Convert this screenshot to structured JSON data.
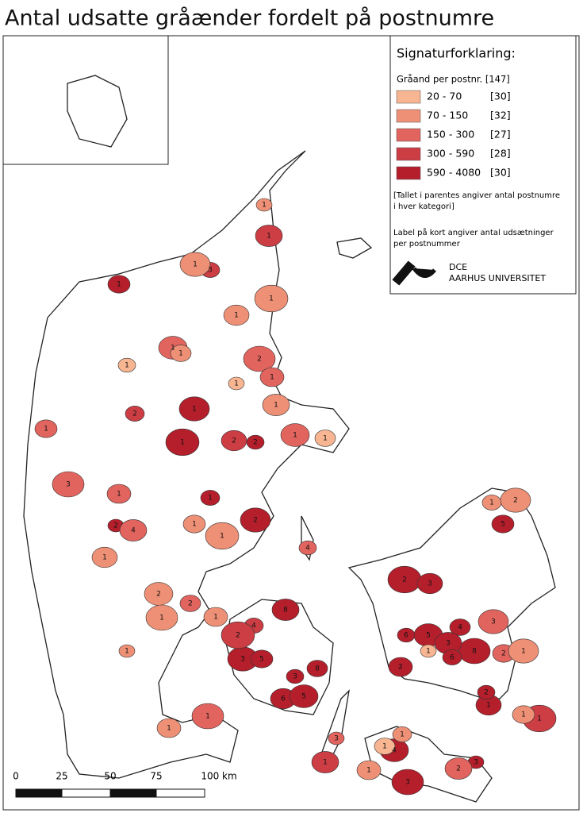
{
  "title": "Antal udsatte gråænder fordelt på postnumre",
  "legend": {
    "title": "Signaturforklaring:",
    "subtitle": "Gråand per postnr. [147]",
    "items": [
      {
        "range": "20 - 70",
        "count": "[30]",
        "color": "#f7b592"
      },
      {
        "range": "70 - 150",
        "count": "[32]",
        "color": "#ee9076"
      },
      {
        "range": "150 - 300",
        "count": "[27]",
        "color": "#e1645e"
      },
      {
        "range": "300 - 590",
        "count": "[28]",
        "color": "#cc3d44"
      },
      {
        "range": "590 - 4080",
        "count": "[30]",
        "color": "#b51f2c"
      }
    ],
    "note_1": [
      "[Tallet i parentes angiver antal postnumre",
      "i hver kategori]"
    ],
    "note_2": [
      "Label på kort angiver antal udsætninger",
      "per postnummer"
    ],
    "logo": [
      "DCE",
      "AARHUS UNIVERSITET"
    ]
  },
  "map": {
    "region_labels": [
      1,
      1,
      3,
      1,
      1,
      1,
      1,
      1,
      1,
      1,
      2,
      1,
      1,
      1,
      2,
      1,
      1,
      1,
      2,
      2,
      1,
      1,
      3,
      1,
      2,
      4,
      1,
      2,
      1,
      1,
      1,
      4,
      2,
      2,
      1,
      1,
      1,
      8,
      4,
      3,
      5,
      2,
      6,
      3,
      5,
      8,
      1,
      1,
      3,
      1,
      1,
      2,
      5,
      2,
      3,
      6,
      5,
      4,
      8,
      2,
      1,
      3,
      6,
      3,
      2,
      1,
      1,
      2,
      4,
      1,
      3,
      1,
      3,
      2,
      1,
      1,
      1
    ]
  },
  "scale_bar": {
    "labels": [
      "0",
      "25",
      "50",
      "75",
      "100 km"
    ]
  }
}
